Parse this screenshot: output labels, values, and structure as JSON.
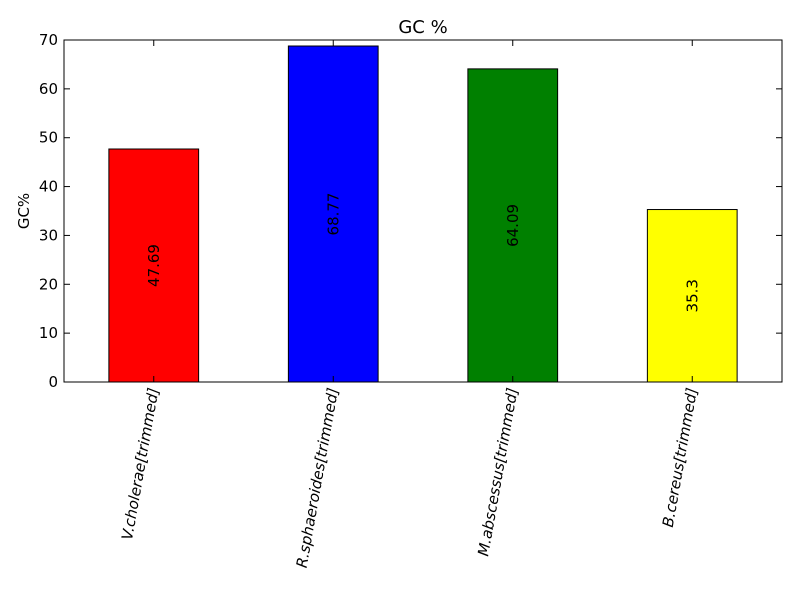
{
  "chart_data": {
    "type": "bar",
    "title": "GC %",
    "xlabel": "",
    "ylabel": "GC%",
    "ylim": [
      0,
      70
    ],
    "yticks": [
      0,
      10,
      20,
      30,
      40,
      50,
      60,
      70
    ],
    "grid": false,
    "categories": [
      "V.cholerae[trimmed]",
      "R.sphaeroides[trimmed]",
      "M.abscessus[trimmed]",
      "B.cereus[trimmed]"
    ],
    "values": [
      47.69,
      68.77,
      64.09,
      35.3
    ],
    "value_labels": [
      "47.69",
      "68.77",
      "64.09",
      "35.3"
    ],
    "colors": [
      "#ff0000",
      "#0000ff",
      "#008000",
      "#ffff00"
    ]
  }
}
